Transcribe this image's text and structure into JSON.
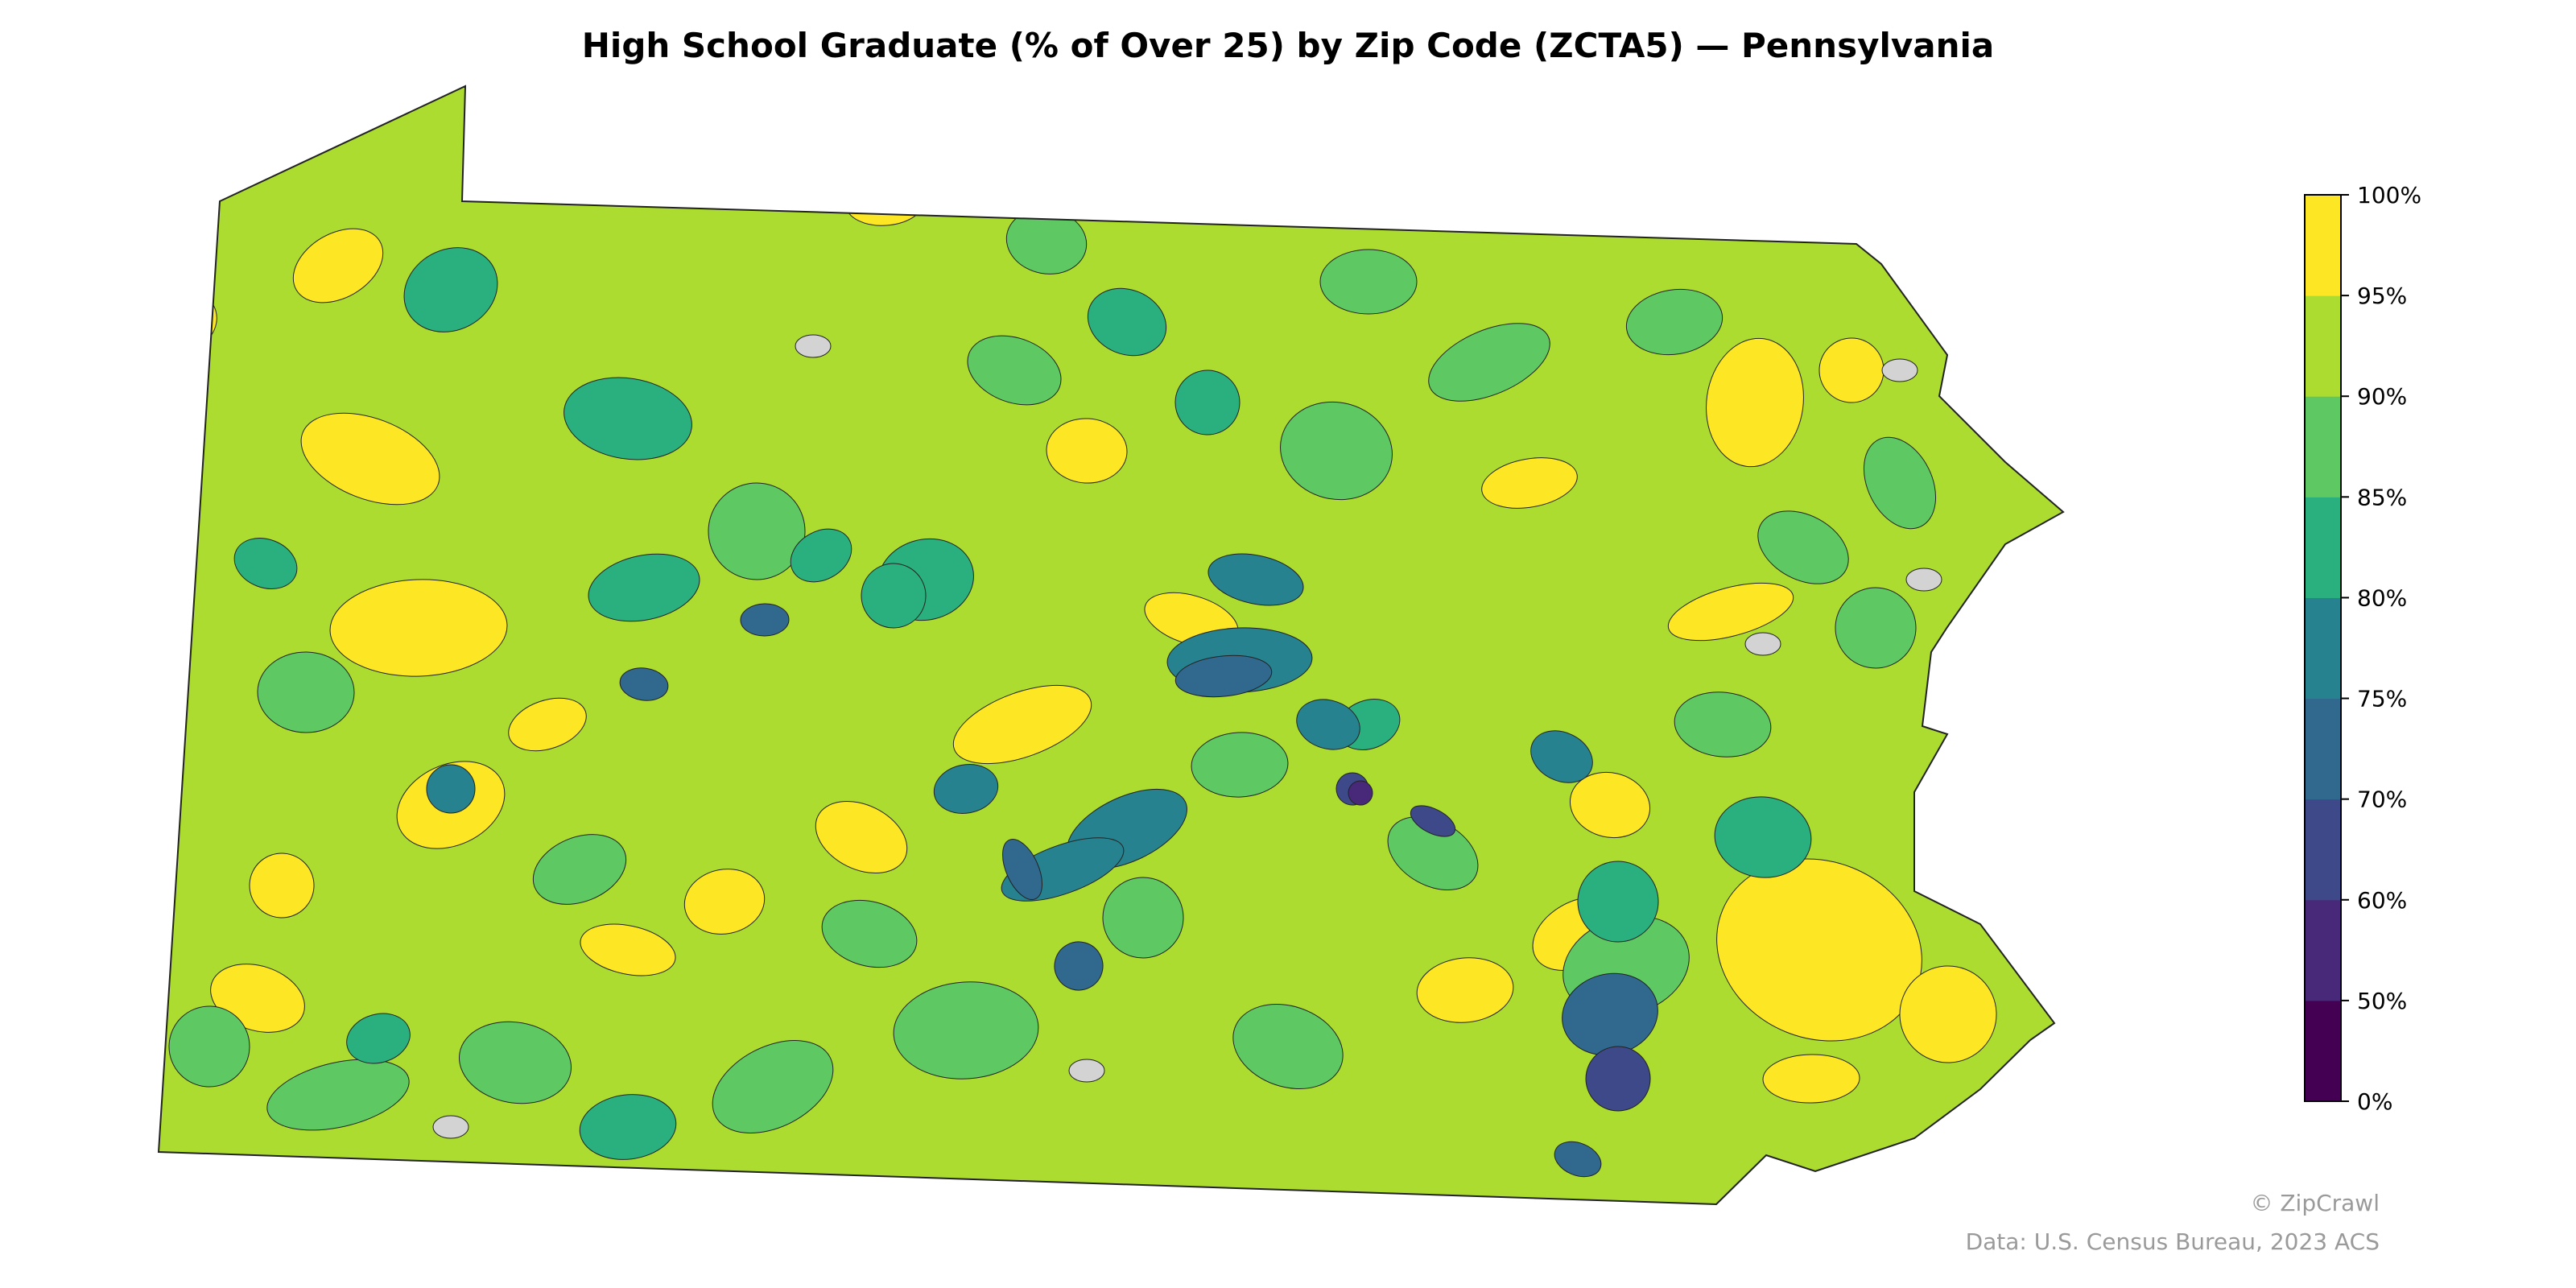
{
  "title": "High School Graduate (% of Over 25) by Zip Code (ZCTA5) — Pennsylvania",
  "map": {
    "region": "Pennsylvania",
    "unit": "ZCTA5",
    "dominant_class_color": "#addc30",
    "no_data_color": "#d3d3d3",
    "border_color": "#222222"
  },
  "colorbar": {
    "ticks": [
      "0%",
      "50%",
      "60%",
      "70%",
      "75%",
      "80%",
      "85%",
      "90%",
      "95%",
      "100%"
    ],
    "colors": [
      "#440154",
      "#482878",
      "#3e4989",
      "#31688e",
      "#26828e",
      "#2ab07f",
      "#5ec962",
      "#addc30",
      "#fde725"
    ]
  },
  "footer": {
    "credit": "© ZipCrawl",
    "source": "Data: U.S. Census Bureau, 2023 ACS"
  }
}
